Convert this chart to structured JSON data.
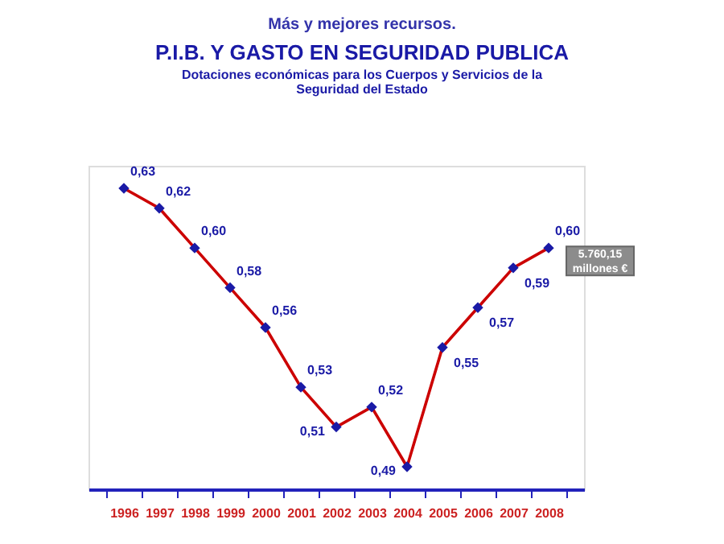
{
  "chart_data": {
    "type": "line",
    "title": "P.I.B. Y GASTO EN SEGURIDAD PUBLICA",
    "subtitle": "Dotaciones económicas para los Cuerpos y Servicios de la Seguridad del Estado",
    "categories": [
      "1996",
      "1997",
      "1998",
      "1999",
      "2000",
      "2001",
      "2002",
      "2003",
      "2004",
      "2005",
      "2006",
      "2007",
      "2008"
    ],
    "series": [
      {
        "color": "#cc0000",
        "values": [
          0.63,
          0.62,
          0.6,
          0.58,
          0.56,
          0.53,
          0.51,
          0.52,
          0.49,
          0.55,
          0.57,
          0.59,
          0.6
        ],
        "value_labels": [
          "0,63",
          "0,62",
          "0,60",
          "0,58",
          "0,56",
          "0,53",
          "0,51",
          "0,52",
          "0,49",
          "0,55",
          "0,57",
          "0,59",
          "0,60"
        ]
      }
    ],
    "marker": "diamond",
    "line_style": "solid",
    "grid": false,
    "tick_labels": "x",
    "annotations": [
      "Más y mejores recursos.",
      {
        "text": "5.760,15\nmillones €",
        "x": "2008",
        "y": 0.6
      }
    ]
  }
}
